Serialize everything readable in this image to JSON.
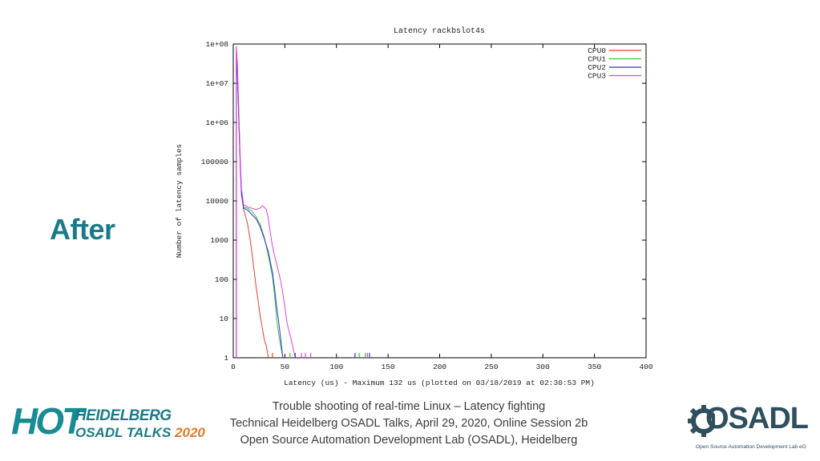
{
  "slide": {
    "heading": "After",
    "footer_lines": [
      "Trouble shooting of real-time Linux – Latency fighting",
      "Technical Heidelberg OSADL Talks, April 29, 2020, Online Session 2b",
      "Open Source Automation Development Lab (OSADL), Heidelberg"
    ],
    "hot_logo": {
      "big": "HOT",
      "line1": "HEIDELBERG",
      "line2": "OSADL TALKS",
      "year": "2020"
    },
    "osadl_logo": {
      "word": "OSADL",
      "sub": "Open Source Automation Development Lab eG"
    },
    "colors": {
      "teal": "#1a7a87",
      "orange": "#e07a2a",
      "osadl_dark": "#2f4f5f"
    }
  },
  "chart_data": {
    "type": "line",
    "title": "Latency rackbslot4s",
    "xlabel": "Latency (us) - Maximum 132 us (plotted on 03/18/2019 at 02:30:53 PM)",
    "ylabel": "Number of latency samples",
    "xlim": [
      0,
      400
    ],
    "ylim": [
      1,
      100000000
    ],
    "yscale": "log",
    "xticks": [
      "0",
      "50",
      "100",
      "150",
      "200",
      "250",
      "300",
      "350",
      "400"
    ],
    "yticks": [
      "1",
      "10",
      "100",
      "1000",
      "10000",
      "100000",
      "1e+06",
      "1e+07",
      "1e+08"
    ],
    "legend_position": "top-right",
    "series": [
      {
        "name": "CPU0",
        "color": "#e8402a",
        "x": [
          3,
          4,
          5,
          6,
          7,
          8,
          10,
          12,
          14,
          16,
          18,
          20,
          22,
          24,
          26,
          28,
          30,
          32,
          34
        ],
        "y": [
          80000000,
          20000000,
          3000000,
          400000,
          60000,
          15000,
          6000,
          4000,
          2500,
          1200,
          500,
          180,
          70,
          30,
          12,
          6,
          3,
          2,
          1
        ]
      },
      {
        "name": "CPU1",
        "color": "#2ecc2e",
        "x": [
          3,
          4,
          5,
          6,
          7,
          8,
          10,
          14,
          18,
          22,
          26,
          30,
          34,
          38,
          40,
          42,
          44,
          46,
          48
        ],
        "y": [
          50000000,
          15000000,
          2500000,
          350000,
          60000,
          15000,
          7000,
          6500,
          5500,
          4000,
          2500,
          1200,
          400,
          120,
          40,
          10,
          4,
          2,
          1
        ]
      },
      {
        "name": "CPU2",
        "color": "#3a2ae0",
        "x": [
          3,
          4,
          5,
          6,
          7,
          8,
          10,
          14,
          18,
          22,
          26,
          30,
          34,
          38,
          40,
          42,
          44,
          46,
          48
        ],
        "y": [
          60000000,
          18000000,
          2800000,
          380000,
          55000,
          14000,
          6500,
          5800,
          4500,
          3500,
          2200,
          1100,
          500,
          150,
          60,
          20,
          8,
          3,
          1
        ]
      },
      {
        "name": "CPU3",
        "color": "#e040e0",
        "x": [
          3,
          4,
          5,
          6,
          7,
          8,
          10,
          14,
          18,
          22,
          26,
          28,
          30,
          32,
          34,
          36,
          38,
          40,
          42,
          44,
          46,
          48,
          50,
          52,
          56,
          60
        ],
        "y": [
          90000000,
          30000000,
          5000000,
          600000,
          80000,
          20000,
          8000,
          7000,
          6500,
          6000,
          6500,
          7500,
          7000,
          6000,
          3500,
          1500,
          700,
          400,
          250,
          150,
          90,
          45,
          20,
          8,
          3,
          1
        ]
      }
    ],
    "outliers": [
      {
        "series": "CPU0",
        "x": [
          38
        ]
      },
      {
        "series": "CPU1",
        "x": [
          55,
          122,
          128
        ]
      },
      {
        "series": "CPU2",
        "x": [
          60,
          118,
          132
        ]
      },
      {
        "series": "CPU3",
        "x": [
          66,
          70,
          75,
          130
        ]
      }
    ]
  }
}
